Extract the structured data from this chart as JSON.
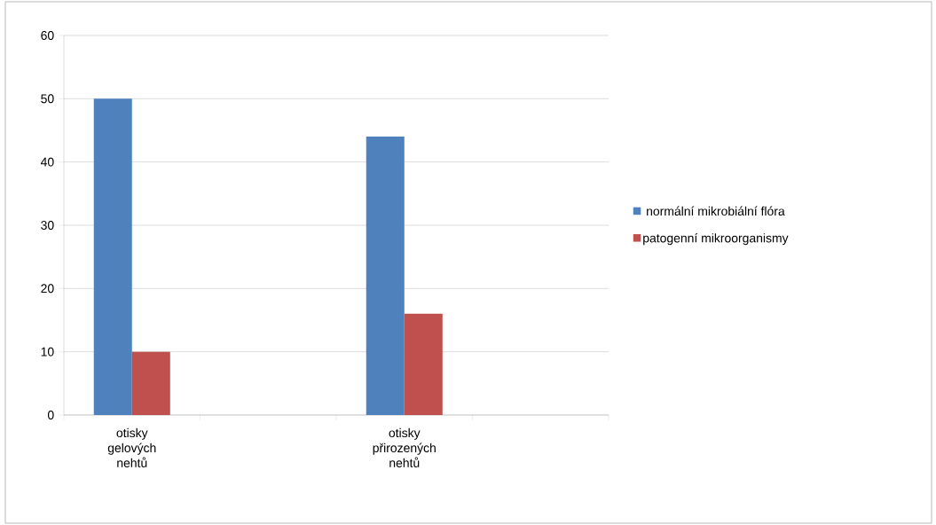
{
  "chart_data": {
    "type": "bar",
    "categories": [
      "otisky gelových nehtů",
      null,
      "otisky přirozených nehtů",
      null
    ],
    "series": [
      {
        "name": "normální mikrobiální flóra",
        "color": "#4f81bd",
        "values": [
          50,
          null,
          44,
          null
        ]
      },
      {
        "name": "patogenní mikroorganismy",
        "color": "#c0504d",
        "values": [
          10,
          null,
          16,
          null
        ]
      }
    ],
    "ylim": [
      0,
      60
    ],
    "yticks": [
      0,
      10,
      20,
      30,
      40,
      50,
      60
    ],
    "grid": "y",
    "legend": "right"
  }
}
